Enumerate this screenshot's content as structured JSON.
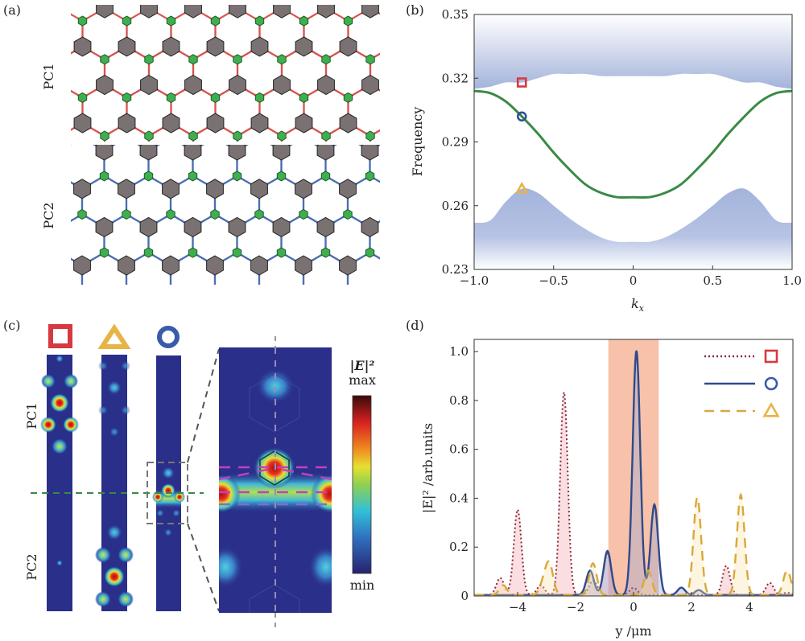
{
  "panels": {
    "a": {
      "label": "(a)",
      "pc1": "PC1",
      "pc2": "PC2",
      "colors": {
        "pc1_lines": "#d9534f",
        "pc2_lines": "#4a6fb5",
        "large_rod": "#7a7272",
        "small_rod": "#3fae4f"
      }
    },
    "b": {
      "label": "(b)"
    },
    "c": {
      "label": "(c)",
      "pc1": "PC1",
      "pc2": "PC2",
      "colorbar_title": "|E|²",
      "colorbar_max": "max",
      "colorbar_min": "min",
      "markers": [
        "square",
        "triangle",
        "circle"
      ]
    },
    "d": {
      "label": "(d)"
    }
  },
  "chart_data": [
    {
      "id": "b",
      "type": "line",
      "xlabel": "k",
      "xlabel_sub": "x",
      "ylabel": "Frequency",
      "xlim": [
        -1.0,
        1.0
      ],
      "ylim": [
        0.23,
        0.35
      ],
      "xticks": [
        "−1.0",
        "−0.5",
        "0",
        "0.5",
        "1.0"
      ],
      "xtick_values": [
        -1,
        -0.5,
        0,
        0.5,
        1
      ],
      "yticks": [
        "0.23",
        "0.26",
        "0.29",
        "0.32",
        "0.35"
      ],
      "ytick_values": [
        0.23,
        0.26,
        0.29,
        0.32,
        0.35
      ],
      "x": [
        -1.0,
        -0.9,
        -0.8,
        -0.7,
        -0.6,
        -0.5,
        -0.4,
        -0.3,
        -0.2,
        -0.1,
        0.0,
        0.1,
        0.2,
        0.3,
        0.4,
        0.5,
        0.6,
        0.7,
        0.8,
        0.9,
        1.0
      ],
      "series": [
        {
          "kind": "edge-state",
          "color": "#3a8a45",
          "values": [
            0.314,
            0.313,
            0.309,
            0.302,
            0.294,
            0.285,
            0.277,
            0.27,
            0.266,
            0.264,
            0.264,
            0.264,
            0.266,
            0.27,
            0.277,
            0.285,
            0.294,
            0.302,
            0.309,
            0.313,
            0.314
          ]
        },
        {
          "kind": "upper-bulk-band-edge",
          "color": "#a9b8dd",
          "values": [
            0.315,
            0.316,
            0.318,
            0.318,
            0.32,
            0.322,
            0.322,
            0.322,
            0.321,
            0.321,
            0.321,
            0.321,
            0.321,
            0.322,
            0.322,
            0.322,
            0.32,
            0.318,
            0.318,
            0.316,
            0.315
          ]
        },
        {
          "kind": "lower-bulk-band-edge",
          "color": "#a9b8dd",
          "values": [
            0.252,
            0.253,
            0.262,
            0.268,
            0.266,
            0.26,
            0.254,
            0.249,
            0.245,
            0.243,
            0.243,
            0.243,
            0.245,
            0.249,
            0.254,
            0.26,
            0.266,
            0.268,
            0.262,
            0.253,
            0.252
          ]
        }
      ],
      "markers": [
        {
          "shape": "square",
          "color": "#d6393f",
          "x": -0.7,
          "y": 0.318
        },
        {
          "shape": "circle",
          "color": "#2f4f97",
          "x": -0.7,
          "y": 0.302
        },
        {
          "shape": "triangle",
          "color": "#e8b445",
          "x": -0.7,
          "y": 0.268
        }
      ]
    },
    {
      "id": "d",
      "type": "line",
      "xlabel": "y /μm",
      "ylabel": "|E|² /arb.units",
      "xlim": [
        -5.5,
        5.5
      ],
      "ylim": [
        0,
        1.05
      ],
      "xticks": [
        "−4",
        "−2",
        "0",
        "2",
        "4"
      ],
      "xtick_values": [
        -4,
        -2,
        0,
        2,
        4
      ],
      "yticks": [
        "0",
        "0.2",
        "0.4",
        "0.6",
        "0.8",
        "1.0"
      ],
      "ytick_values": [
        0,
        0.2,
        0.4,
        0.6,
        0.8,
        1.0
      ],
      "shaded_region": {
        "x": [
          -0.87,
          0.87
        ],
        "color": "#f6b79a"
      },
      "series": [
        {
          "marker": "square",
          "style": "dotted",
          "color": "#8b2a3a",
          "fill": "#f4a0a8",
          "peaks": [
            [
              -4.6,
              0.07
            ],
            [
              -4.0,
              0.35
            ],
            [
              -3.2,
              0.04
            ],
            [
              -2.4,
              0.83
            ],
            [
              -1.4,
              0.06
            ],
            [
              -0.9,
              0.17
            ],
            [
              0.0,
              0.03
            ],
            [
              3.2,
              0.12
            ],
            [
              4.7,
              0.05
            ],
            [
              5.3,
              0.01
            ]
          ]
        },
        {
          "marker": "circle",
          "style": "solid",
          "color": "#2f4a8a",
          "fill": "#8fa2d6",
          "peaks": [
            [
              -1.5,
              0.1
            ],
            [
              -0.9,
              0.18
            ],
            [
              0.1,
              1.0
            ],
            [
              0.72,
              0.37
            ],
            [
              1.65,
              0.03
            ],
            [
              2.25,
              0.02
            ]
          ]
        },
        {
          "marker": "triangle",
          "style": "dashed",
          "color": "#d8a93a",
          "fill": "#f8e2a6",
          "peaks": [
            [
              -4.5,
              0.04
            ],
            [
              -3.1,
              0.05
            ],
            [
              -2.9,
              0.12
            ],
            [
              -1.4,
              0.13
            ],
            [
              0.5,
              0.1
            ],
            [
              2.2,
              0.4
            ],
            [
              3.7,
              0.41
            ],
            [
              5.3,
              0.1
            ]
          ]
        }
      ]
    }
  ]
}
